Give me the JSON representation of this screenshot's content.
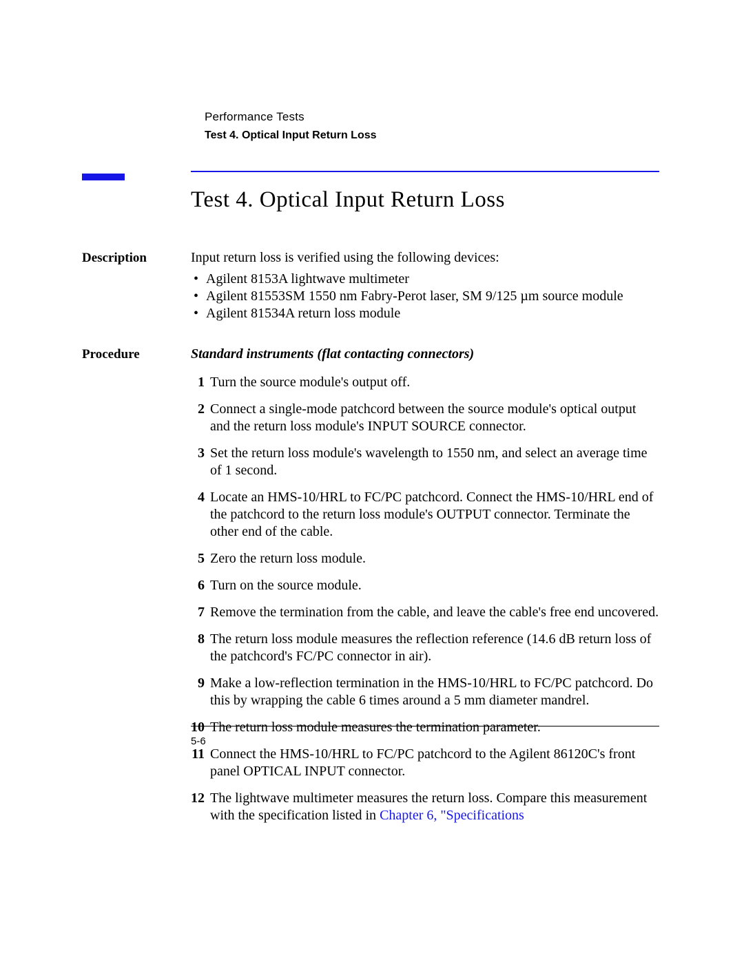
{
  "colors": {
    "accent": "#1616e6",
    "text": "#000000",
    "background": "#ffffff"
  },
  "typography": {
    "body_font": "Times New Roman",
    "header_font": "Arial",
    "title_size_pt": 25,
    "body_size_pt": 15,
    "label_size_pt": 14,
    "header_size_pt": 12
  },
  "header": {
    "chapter": "Performance Tests",
    "section": "Test 4. Optical Input Return Loss"
  },
  "title": "Test 4. Optical Input Return Loss",
  "description": {
    "label": "Description",
    "intro": "Input return loss is verified using the following devices:",
    "devices": [
      "Agilent 8153A lightwave multimeter",
      "Agilent 81553SM 1550 nm Fabry-Perot laser, SM 9/125 µm source module",
      "Agilent 81534A return loss module"
    ]
  },
  "procedure": {
    "label": "Procedure",
    "subhead": "Standard instruments (flat contacting connectors)",
    "steps": [
      "Turn the source module's output off.",
      "Connect a single-mode patchcord between the source module's optical output and the return loss module's INPUT SOURCE connector.",
      "Set the return loss module's wavelength to 1550 nm, and select an average time of 1 second.",
      "Locate an HMS-10/HRL to FC/PC patchcord. Connect the HMS-10/HRL end of the patchcord to the return loss module's OUTPUT connector. Terminate the other end of the cable.",
      "Zero the return loss module.",
      "Turn on the source module.",
      "Remove the termination from the cable, and leave the cable's free end uncovered.",
      "The return loss module measures the reflection reference (14.6 dB return loss of the patchcord's FC/PC connector in air).",
      "Make a low-reflection termination in the HMS-10/HRL to FC/PC patchcord. Do this by wrapping the cable 6 times around a 5 mm diameter mandrel.",
      "The return loss module measures the termination parameter.",
      "Connect the HMS-10/HRL to FC/PC patchcord to the Agilent 86120C's front panel OPTICAL INPUT connector."
    ],
    "step12_prefix": "The lightwave multimeter measures the return loss. Compare this measurement with the specification listed in ",
    "step12_link": "Chapter 6, \"Specifications"
  },
  "page_number": "5-6"
}
